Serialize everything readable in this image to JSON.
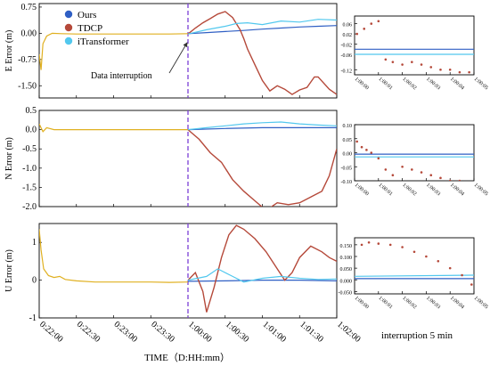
{
  "figure": {
    "shared_xlabel": "TIME（D:HH:mm）",
    "inset_caption": "interruption 5 min",
    "annotation": "Data interruption"
  },
  "colors": {
    "ours": "#2f5fc4",
    "tdcp": "#b5493a",
    "itransformer": "#52c8ee",
    "pre_interruption": "#e0b020",
    "interruption_line": "#7b3fd6"
  },
  "chart_data": [
    {
      "id": "E",
      "type": "line",
      "ylabel": "E Error (m)",
      "ylim": [
        -1.85,
        0.85
      ],
      "yticks": [
        0.75,
        0.0,
        -0.75,
        -1.5
      ],
      "yticklabels": [
        "0.75",
        "0.00",
        "-0.75",
        "-1.50"
      ],
      "xticklabels": [
        "0:22:00",
        "0:22:30",
        "0:23:00",
        "0:23:30",
        "1:00:00",
        "1:00:30",
        "1:01:00",
        "1:01:30",
        "1:02:00"
      ],
      "xlim": [
        0,
        8
      ],
      "interruption_x": 4,
      "legend": [
        "Ours",
        "TDCP",
        "iTransformer"
      ],
      "series": [
        {
          "name": "",
          "role": "pre_interruption",
          "x": [
            0,
            0.05,
            0.1,
            0.2,
            0.35,
            0.6,
            1,
            2,
            3,
            3.5,
            4
          ],
          "y": [
            -0.6,
            -1.05,
            -0.3,
            -0.08,
            0.0,
            -0.01,
            -0.02,
            -0.02,
            -0.02,
            -0.02,
            -0.01
          ]
        },
        {
          "name": "Ours",
          "x": [
            4,
            4.5,
            5,
            5.5,
            6,
            6.5,
            7,
            7.5,
            8
          ],
          "y": [
            -0.01,
            0.02,
            0.05,
            0.08,
            0.12,
            0.15,
            0.18,
            0.2,
            0.22
          ]
        },
        {
          "name": "TDCP",
          "x": [
            4,
            4.2,
            4.4,
            4.6,
            4.8,
            5.0,
            5.2,
            5.4,
            5.5,
            5.6,
            5.8,
            6.0,
            6.2,
            6.4,
            6.6,
            6.8,
            7.0,
            7.2,
            7.4,
            7.5,
            7.8,
            8.0
          ],
          "y": [
            -0.02,
            0.15,
            0.3,
            0.42,
            0.55,
            0.62,
            0.45,
            0.1,
            -0.15,
            -0.45,
            -0.9,
            -1.35,
            -1.65,
            -1.5,
            -1.6,
            -1.75,
            -1.62,
            -1.55,
            -1.25,
            -1.25,
            -1.6,
            -1.75
          ]
        },
        {
          "name": "iTransformer",
          "x": [
            4,
            4.5,
            5,
            5.3,
            5.6,
            6,
            6.5,
            7,
            7.5,
            8
          ],
          "y": [
            -0.02,
            0.1,
            0.2,
            0.28,
            0.3,
            0.25,
            0.35,
            0.32,
            0.4,
            0.38
          ]
        }
      ]
    },
    {
      "id": "N",
      "type": "line",
      "ylabel": "N Error (m)",
      "ylim": [
        -2.0,
        0.5
      ],
      "yticks": [
        0.5,
        0.0,
        -0.5,
        -1.0,
        -1.5,
        -2.0
      ],
      "yticklabels": [
        "0.5",
        "0.0",
        "-0.5",
        "-1.0",
        "-1.5",
        "-2.0"
      ],
      "xticklabels": [
        "0:22:00",
        "0:22:30",
        "0:23:00",
        "0:23:30",
        "1:00:00",
        "1:00:30",
        "1:01:00",
        "1:01:30",
        "1:02:00"
      ],
      "xlim": [
        0,
        8
      ],
      "interruption_x": 4,
      "series": [
        {
          "name": "",
          "role": "pre_interruption",
          "x": [
            0,
            0.1,
            0.2,
            0.4,
            1,
            2,
            3,
            4
          ],
          "y": [
            0.15,
            -0.05,
            0.05,
            0.0,
            0.0,
            0.0,
            0.0,
            0.0
          ]
        },
        {
          "name": "Ours",
          "x": [
            4,
            5,
            6,
            7,
            8
          ],
          "y": [
            0.0,
            0.03,
            0.05,
            0.05,
            0.05
          ]
        },
        {
          "name": "TDCP",
          "x": [
            4,
            4.3,
            4.6,
            4.9,
            5.2,
            5.5,
            5.8,
            6.1,
            6.4,
            6.7,
            7.0,
            7.3,
            7.6,
            7.8,
            8.0
          ],
          "y": [
            0.0,
            -0.25,
            -0.6,
            -0.85,
            -1.3,
            -1.6,
            -1.85,
            -2.1,
            -1.9,
            -1.95,
            -1.9,
            -1.75,
            -1.6,
            -1.2,
            -0.5
          ]
        },
        {
          "name": "iTransformer",
          "x": [
            4,
            4.5,
            5,
            5.5,
            6,
            6.5,
            7,
            7.5,
            8
          ],
          "y": [
            0.0,
            0.05,
            0.1,
            0.15,
            0.18,
            0.2,
            0.15,
            0.12,
            0.1
          ]
        }
      ]
    },
    {
      "id": "U",
      "type": "line",
      "ylabel": "U Error (m)",
      "ylim": [
        -1.0,
        1.5
      ],
      "yticks": [
        1.0,
        0.0,
        -1.0
      ],
      "yticklabels": [
        "1",
        "0",
        "-1"
      ],
      "xticklabels": [
        "0:22:00",
        "0:22:30",
        "0:23:00",
        "0:23:30",
        "1:00:00",
        "1:00:30",
        "1:01:00",
        "1:01:30",
        "1:02:00"
      ],
      "xlim": [
        0,
        8
      ],
      "interruption_x": 4,
      "series": [
        {
          "name": "",
          "role": "pre_interruption",
          "x": [
            0,
            0.05,
            0.12,
            0.25,
            0.4,
            0.55,
            0.7,
            1,
            1.5,
            2,
            3,
            3.5,
            4
          ],
          "y": [
            1.35,
            0.8,
            0.3,
            0.12,
            0.07,
            0.1,
            0.02,
            -0.02,
            -0.05,
            -0.05,
            -0.05,
            -0.06,
            -0.05
          ]
        },
        {
          "name": "Ours",
          "x": [
            4,
            5,
            6,
            7,
            8
          ],
          "y": [
            -0.03,
            -0.02,
            0.0,
            0.0,
            -0.02
          ]
        },
        {
          "name": "TDCP",
          "x": [
            4,
            4.2,
            4.4,
            4.5,
            4.7,
            4.9,
            5.1,
            5.3,
            5.5,
            5.8,
            6.1,
            6.4,
            6.6,
            6.8,
            7.0,
            7.3,
            7.6,
            7.8,
            8.0
          ],
          "y": [
            0.0,
            0.2,
            -0.3,
            -0.85,
            -0.2,
            0.6,
            1.2,
            1.45,
            1.35,
            1.1,
            0.75,
            0.3,
            0.0,
            0.2,
            0.6,
            0.9,
            0.75,
            0.6,
            0.5
          ]
        },
        {
          "name": "iTransformer",
          "x": [
            4,
            4.5,
            4.8,
            5.2,
            5.5,
            6,
            6.5,
            7,
            7.5,
            8
          ],
          "y": [
            0.0,
            0.1,
            0.3,
            0.1,
            -0.05,
            0.05,
            0.1,
            0.05,
            0.02,
            0.03
          ]
        }
      ]
    },
    {
      "id": "E-inset",
      "type": "scatter",
      "ylim": [
        -0.14,
        0.09
      ],
      "yticks": [
        0.06,
        0.02,
        -0.02,
        -0.06,
        -0.12
      ],
      "yticklabels": [
        "0.06",
        "0.02",
        "-0.02",
        "-0.06",
        "-0.12"
      ],
      "xticklabels": [
        "1:00:00",
        "1:00:01",
        "1:00:02",
        "1:00:03",
        "1:00:04",
        "1:00:05"
      ],
      "xlim": [
        0,
        5
      ],
      "series": [
        {
          "name": "Ours",
          "x": [
            0,
            5
          ],
          "y": [
            -0.04,
            -0.04
          ]
        },
        {
          "name": "iTransformer",
          "x": [
            0,
            5
          ],
          "y": [
            -0.06,
            -0.06
          ]
        },
        {
          "name": "TDCP",
          "x": [
            0.1,
            0.4,
            0.7,
            1.0,
            1.3,
            1.6,
            2.0,
            2.4,
            2.8,
            3.2,
            3.6,
            4.0,
            4.4,
            4.8
          ],
          "y": [
            0.02,
            0.04,
            0.06,
            0.07,
            -0.08,
            -0.09,
            -0.1,
            -0.09,
            -0.1,
            -0.11,
            -0.12,
            -0.12,
            -0.13,
            -0.13
          ]
        }
      ]
    },
    {
      "id": "N-inset",
      "type": "scatter",
      "ylim": [
        -0.1,
        0.1
      ],
      "yticks": [
        0.1,
        0.05,
        0.0,
        -0.05,
        -0.1
      ],
      "yticklabels": [
        "0.10",
        "0.05",
        "0.00",
        "-0.05",
        "-0.10"
      ],
      "xticklabels": [
        "1:00:00",
        "1:00:01",
        "1:00:02",
        "1:00:03",
        "1:00:04",
        "1:00:05"
      ],
      "xlim": [
        0,
        5
      ],
      "series": [
        {
          "name": "Ours",
          "x": [
            0,
            5
          ],
          "y": [
            -0.005,
            -0.005
          ]
        },
        {
          "name": "iTransformer",
          "x": [
            0,
            5
          ],
          "y": [
            -0.015,
            -0.015
          ]
        },
        {
          "name": "TDCP",
          "x": [
            0.1,
            0.3,
            0.5,
            0.7,
            1.0,
            1.3,
            1.6,
            2.0,
            2.4,
            2.8,
            3.2,
            3.6,
            4.0,
            4.4
          ],
          "y": [
            0.04,
            0.02,
            0.01,
            0.0,
            -0.02,
            -0.06,
            -0.08,
            -0.05,
            -0.06,
            -0.07,
            -0.08,
            -0.09,
            -0.1,
            -0.1
          ]
        }
      ]
    },
    {
      "id": "U-inset",
      "type": "scatter",
      "ylim": [
        -0.06,
        0.18
      ],
      "yticks": [
        0.15,
        0.1,
        0.05,
        0.0,
        -0.05
      ],
      "yticklabels": [
        "0.150",
        "0.100",
        "0.050",
        "0.000",
        "-0.050"
      ],
      "xticklabels": [
        "1:00:00",
        "1:00:01",
        "1:00:02",
        "1:00:03",
        "1:00:04",
        "1:00:05"
      ],
      "xlim": [
        0,
        5
      ],
      "series": [
        {
          "name": "Ours",
          "x": [
            0,
            5
          ],
          "y": [
            0.005,
            0.005
          ]
        },
        {
          "name": "iTransformer",
          "x": [
            0,
            5
          ],
          "y": [
            0.015,
            0.02
          ]
        },
        {
          "name": "TDCP",
          "x": [
            0.3,
            0.6,
            1.0,
            1.5,
            2.0,
            2.5,
            3.0,
            3.5,
            4.0,
            4.5,
            4.9
          ],
          "y": [
            0.15,
            0.16,
            0.155,
            0.15,
            0.14,
            0.12,
            0.1,
            0.08,
            0.05,
            0.02,
            -0.02
          ]
        }
      ]
    }
  ]
}
